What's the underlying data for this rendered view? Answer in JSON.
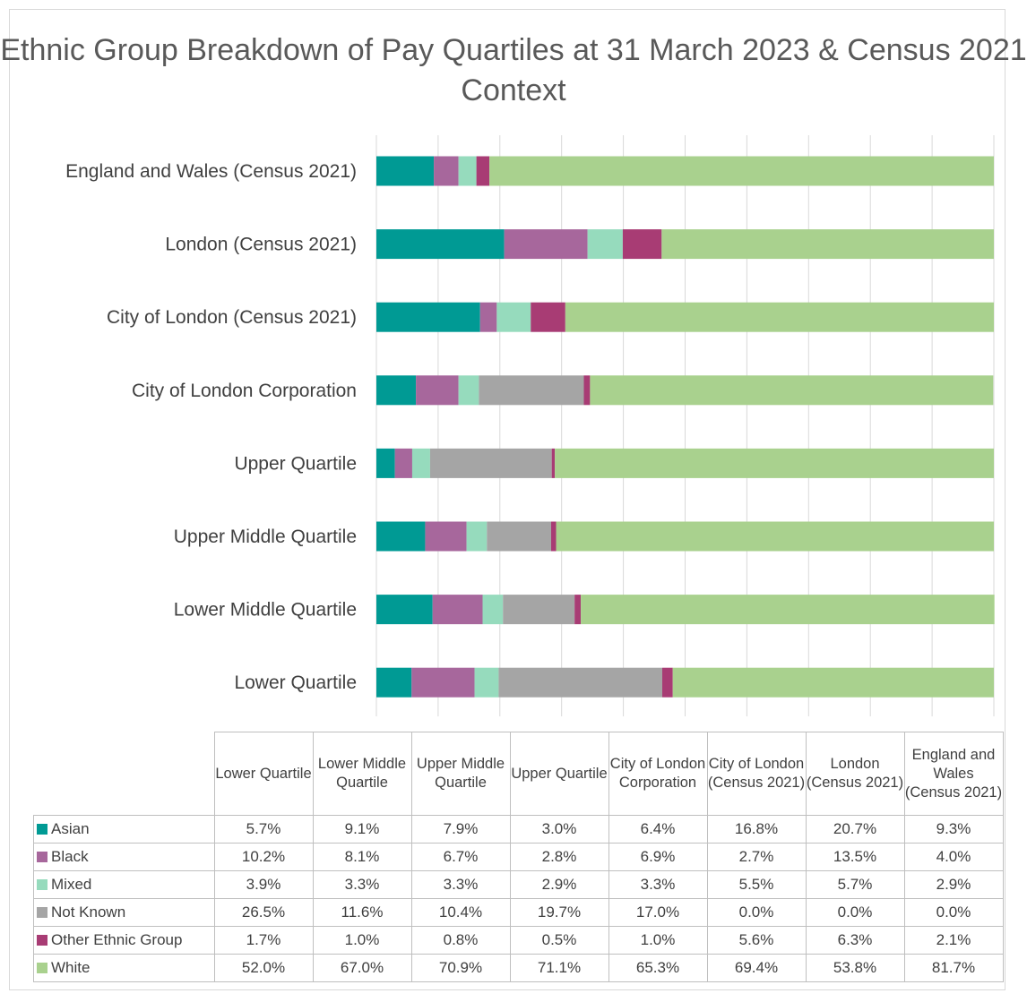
{
  "chart_data": {
    "type": "bar",
    "orientation": "horizontal",
    "stacked": true,
    "title": "Ethnic Group Breakdown of Pay Quartiles at 31 March 2023 & Census 2021 Context",
    "categories": [
      "Lower Quartile",
      "Lower Middle Quartile",
      "Upper Middle Quartile",
      "Upper Quartile",
      "City of London Corporation",
      "City of London (Census 2021)",
      "London (Census 2021)",
      "England and Wales (Census 2021)"
    ],
    "table_headers": [
      "Lower Quartile",
      "Lower Middle Quartile",
      "Upper Middle Quartile",
      "Upper Quartile",
      "City of London Corporation",
      "City of London (Census 2021)",
      "London (Census 2021)",
      "England and Wales (Census 2021)"
    ],
    "series": [
      {
        "name": "Asian",
        "color": "#009a94",
        "values": [
          5.7,
          9.1,
          7.9,
          3.0,
          6.4,
          16.8,
          20.7,
          9.3
        ],
        "labels": [
          "5.7%",
          "9.1%",
          "7.9%",
          "3.0%",
          "6.4%",
          "16.8%",
          "20.7%",
          "9.3%"
        ]
      },
      {
        "name": "Black",
        "color": "#a7679c",
        "values": [
          10.2,
          8.1,
          6.7,
          2.8,
          6.9,
          2.7,
          13.5,
          4.0
        ],
        "labels": [
          "10.2%",
          "8.1%",
          "6.7%",
          "2.8%",
          "6.9%",
          "2.7%",
          "13.5%",
          "4.0%"
        ]
      },
      {
        "name": "Mixed",
        "color": "#96dbbd",
        "values": [
          3.9,
          3.3,
          3.3,
          2.9,
          3.3,
          5.5,
          5.7,
          2.9
        ],
        "labels": [
          "3.9%",
          "3.3%",
          "3.3%",
          "2.9%",
          "3.3%",
          "5.5%",
          "5.7%",
          "2.9%"
        ]
      },
      {
        "name": "Not Known",
        "color": "#a5a5a5",
        "values": [
          26.5,
          11.6,
          10.4,
          19.7,
          17.0,
          0.0,
          0.0,
          0.0
        ],
        "labels": [
          "26.5%",
          "11.6%",
          "10.4%",
          "19.7%",
          "17.0%",
          "0.0%",
          "0.0%",
          "0.0%"
        ]
      },
      {
        "name": "Other Ethnic Group",
        "color": "#a83c74",
        "values": [
          1.7,
          1.0,
          0.8,
          0.5,
          1.0,
          5.6,
          6.3,
          2.1
        ],
        "labels": [
          "1.7%",
          "1.0%",
          "0.8%",
          "0.5%",
          "1.0%",
          "5.6%",
          "6.3%",
          "2.1%"
        ]
      },
      {
        "name": "White",
        "color": "#a9d18e",
        "values": [
          52.0,
          67.0,
          70.9,
          71.1,
          65.3,
          69.4,
          53.8,
          81.7
        ],
        "labels": [
          "52.0%",
          "67.0%",
          "70.9%",
          "71.1%",
          "65.3%",
          "69.4%",
          "53.8%",
          "81.7%"
        ]
      }
    ],
    "xlim": [
      0,
      100
    ],
    "grid": true,
    "legend": "data table below chart"
  }
}
